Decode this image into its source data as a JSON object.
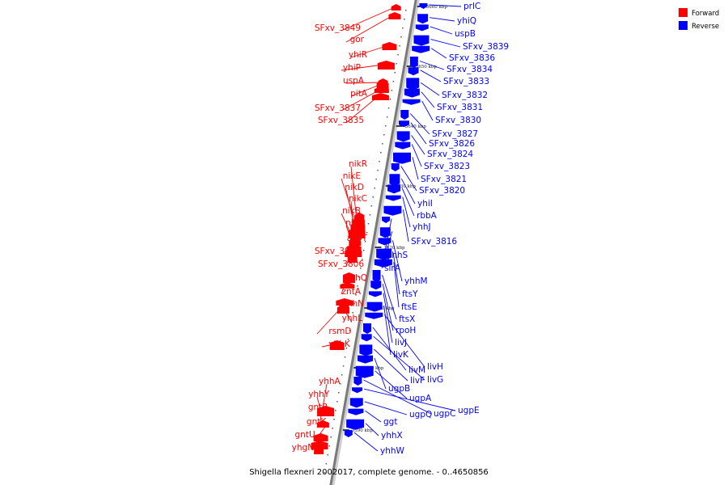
{
  "caption": "Shigella flexneri 2002017, complete genome. - 0..4650856",
  "legend": [
    {
      "label": "Forward",
      "color": "#ff0000"
    },
    {
      "label": "Reverse",
      "color": "#0000ff"
    }
  ],
  "colors": {
    "forward": "#ff0000",
    "reverse": "#0000ff",
    "axis": "#888888"
  },
  "ticks": [
    "3660 kbp",
    "3650 kbp",
    "3640 kbp",
    "3630 kbp",
    "3620 kbp",
    "3610 kbp",
    "3600 kbp",
    "3590 kbp"
  ],
  "forward_genes": [
    "SFxv_3849",
    "gor",
    "yhiR",
    "yhiP",
    "uspA",
    "pitA",
    "SFxv_3837",
    "SFxv_3835",
    "nikR",
    "nikE",
    "nikD",
    "nikC",
    "nikB",
    "nikA",
    "acpT",
    "SFxv_3808",
    "SFxv_3806",
    "yhhQ",
    "zntA",
    "yhhN",
    "yhhL",
    "rsmD",
    "yhhK",
    "yhhA",
    "yhhY",
    "gntR",
    "gntK",
    "gntU",
    "yhgN"
  ],
  "reverse_genes": [
    "prlC",
    "yhiQ",
    "uspB",
    "SFxv_3839",
    "SFxv_3836",
    "SFxv_3834",
    "SFxv_3833",
    "SFxv_3832",
    "SFxv_3831",
    "SFxv_3830",
    "SFxv_3827",
    "SFxv_3826",
    "SFxv_3824",
    "SFxv_3823",
    "SFxv_3821",
    "SFxv_3820",
    "yhiI",
    "rbbA",
    "yhhJ",
    "SFxv_3816",
    "yhhS",
    "sirA",
    "yhhM",
    "ftsY",
    "ftsE",
    "ftsX",
    "rpoH",
    "livJ",
    "livK",
    "livH",
    "livM",
    "livG",
    "livF",
    "ugpB",
    "ugpA",
    "ugpC",
    "ugpE",
    "ugpQ",
    "ggt",
    "yhhX",
    "yhhW"
  ]
}
